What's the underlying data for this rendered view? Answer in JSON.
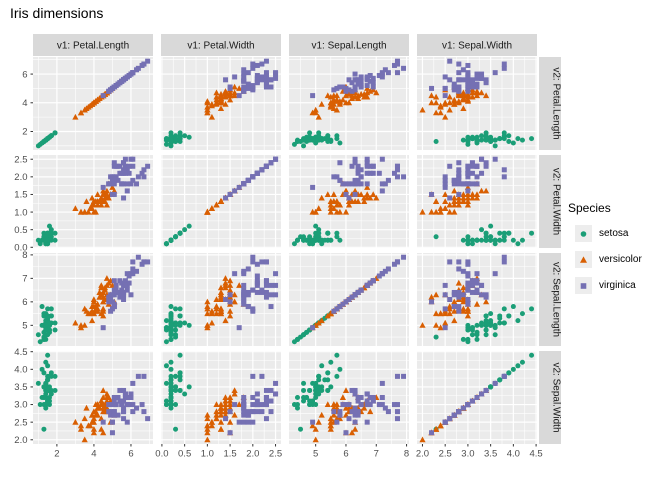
{
  "chart_data": {
    "type": "scatter",
    "title": "Iris dimensions",
    "facet_layout": "4x4 pairs matrix; column variable v1 on x-axis, row variable v2 on y-axis; strips on top and right; axis labels only on left and bottom",
    "facet_col_labels": [
      "v1: Petal.Length",
      "v1: Petal.Width",
      "v1: Sepal.Length",
      "v1: Sepal.Width"
    ],
    "facet_row_labels": [
      "v2: Petal.Length",
      "v2: Petal.Width",
      "v2: Sepal.Length",
      "v2: Sepal.Width"
    ],
    "variables": [
      "petal_length",
      "petal_width",
      "sepal_length",
      "sepal_width"
    ],
    "variable_display_names": [
      "Petal.Length",
      "Petal.Width",
      "Sepal.Length",
      "Sepal.Width"
    ],
    "axes": {
      "petal_length": {
        "domain": [
          0.71,
          7.19
        ],
        "ticks": [
          2,
          4,
          6
        ],
        "tick_labels": [
          "2",
          "4",
          "6"
        ]
      },
      "petal_width": {
        "domain": [
          -0.02,
          2.62
        ],
        "ticks": [
          0,
          0.5,
          1,
          1.5,
          2,
          2.5
        ],
        "tick_labels": [
          "0.0",
          "0.5",
          "1.0",
          "1.5",
          "2.0",
          "2.5"
        ]
      },
      "sepal_length": {
        "domain": [
          4.12,
          8.08
        ],
        "ticks": [
          5,
          6,
          7,
          8
        ],
        "tick_labels": [
          "5",
          "6",
          "7",
          "8"
        ]
      },
      "sepal_width": {
        "domain": [
          1.88,
          4.52
        ],
        "ticks": [
          2,
          2.5,
          3,
          3.5,
          4,
          4.5
        ],
        "tick_labels": [
          "2.0",
          "2.5",
          "3.0",
          "3.5",
          "4.0",
          "4.5"
        ]
      }
    },
    "legend": {
      "title": "Species",
      "position": "right",
      "entries": [
        {
          "label": "setosa",
          "shape": "circle",
          "color": "#1B9E77"
        },
        {
          "label": "versicolor",
          "shape": "triangle",
          "color": "#D95F02"
        },
        {
          "label": "virginica",
          "shape": "square",
          "color": "#7570B3"
        }
      ]
    },
    "series": [
      {
        "name": "setosa",
        "shape": "circle",
        "color": "#1B9E77",
        "sepal_length": [
          5.1,
          4.9,
          4.7,
          4.6,
          5.0,
          5.4,
          4.6,
          5.0,
          4.4,
          4.9,
          5.4,
          4.8,
          4.8,
          4.3,
          5.8,
          5.7,
          5.4,
          5.1,
          5.7,
          5.1,
          5.4,
          5.1,
          4.6,
          5.1,
          4.8,
          5.0,
          5.0,
          5.2,
          5.2,
          4.7,
          4.8,
          5.4,
          5.2,
          5.5,
          4.9,
          5.0,
          5.5,
          4.9,
          4.4,
          5.1,
          5.0,
          4.5,
          4.4,
          5.0,
          5.1,
          4.8,
          5.1,
          4.6,
          5.3,
          5.0
        ],
        "sepal_width": [
          3.5,
          3.0,
          3.2,
          3.1,
          3.6,
          3.9,
          3.4,
          3.4,
          2.9,
          3.1,
          3.7,
          3.4,
          3.0,
          3.0,
          4.0,
          4.4,
          3.9,
          3.5,
          3.8,
          3.8,
          3.4,
          3.7,
          3.6,
          3.3,
          3.4,
          3.0,
          3.4,
          3.5,
          3.4,
          3.2,
          3.1,
          3.4,
          4.1,
          4.2,
          3.1,
          3.2,
          3.5,
          3.6,
          3.0,
          3.4,
          3.5,
          2.3,
          3.2,
          3.5,
          3.8,
          3.0,
          3.8,
          3.2,
          3.7,
          3.3
        ],
        "petal_length": [
          1.4,
          1.4,
          1.3,
          1.5,
          1.4,
          1.7,
          1.4,
          1.5,
          1.4,
          1.5,
          1.5,
          1.6,
          1.4,
          1.1,
          1.2,
          1.5,
          1.3,
          1.4,
          1.7,
          1.5,
          1.7,
          1.5,
          1.0,
          1.7,
          1.9,
          1.6,
          1.6,
          1.5,
          1.4,
          1.6,
          1.6,
          1.5,
          1.5,
          1.4,
          1.5,
          1.2,
          1.3,
          1.4,
          1.3,
          1.5,
          1.3,
          1.3,
          1.3,
          1.6,
          1.9,
          1.4,
          1.6,
          1.4,
          1.5,
          1.4
        ],
        "petal_width": [
          0.2,
          0.2,
          0.2,
          0.2,
          0.2,
          0.4,
          0.3,
          0.2,
          0.2,
          0.1,
          0.2,
          0.2,
          0.1,
          0.1,
          0.2,
          0.4,
          0.4,
          0.3,
          0.3,
          0.3,
          0.2,
          0.4,
          0.2,
          0.5,
          0.2,
          0.2,
          0.4,
          0.2,
          0.2,
          0.2,
          0.2,
          0.4,
          0.1,
          0.2,
          0.2,
          0.2,
          0.2,
          0.1,
          0.2,
          0.2,
          0.3,
          0.3,
          0.2,
          0.6,
          0.4,
          0.3,
          0.2,
          0.2,
          0.2,
          0.2
        ]
      },
      {
        "name": "versicolor",
        "shape": "triangle",
        "color": "#D95F02",
        "sepal_length": [
          7.0,
          6.4,
          6.9,
          5.5,
          6.5,
          5.7,
          6.3,
          4.9,
          6.6,
          5.2,
          5.0,
          5.9,
          6.0,
          6.1,
          5.6,
          6.7,
          5.6,
          5.8,
          6.2,
          5.6,
          5.9,
          6.1,
          6.3,
          6.1,
          6.4,
          6.6,
          6.8,
          6.7,
          6.0,
          5.7,
          5.5,
          5.5,
          5.8,
          6.0,
          5.4,
          6.0,
          6.7,
          6.3,
          5.6,
          5.5,
          5.5,
          6.1,
          5.8,
          5.0,
          5.6,
          5.7,
          5.7,
          6.2,
          5.1,
          5.7
        ],
        "sepal_width": [
          3.2,
          3.2,
          3.1,
          2.3,
          2.8,
          2.8,
          3.3,
          2.4,
          2.9,
          2.7,
          2.0,
          3.0,
          2.2,
          2.9,
          2.9,
          3.1,
          3.0,
          2.7,
          2.2,
          2.5,
          3.2,
          2.8,
          2.5,
          2.8,
          2.9,
          3.0,
          2.8,
          3.0,
          2.9,
          2.6,
          2.4,
          2.4,
          2.7,
          2.7,
          3.0,
          3.4,
          3.1,
          2.3,
          3.0,
          2.5,
          2.6,
          3.0,
          2.6,
          2.3,
          2.7,
          3.0,
          2.9,
          2.9,
          2.5,
          2.8
        ],
        "petal_length": [
          4.7,
          4.5,
          4.9,
          4.0,
          4.6,
          4.5,
          4.7,
          3.3,
          4.6,
          3.9,
          3.5,
          4.2,
          4.0,
          4.7,
          3.6,
          4.4,
          4.5,
          4.1,
          4.5,
          3.9,
          4.8,
          4.0,
          4.9,
          4.7,
          4.3,
          4.4,
          4.8,
          5.0,
          4.5,
          3.5,
          3.8,
          3.7,
          3.9,
          5.1,
          4.5,
          4.5,
          4.7,
          4.4,
          4.1,
          4.0,
          4.4,
          4.6,
          4.0,
          3.3,
          4.2,
          4.2,
          4.2,
          4.3,
          3.0,
          4.1
        ],
        "petal_width": [
          1.4,
          1.5,
          1.5,
          1.3,
          1.5,
          1.3,
          1.6,
          1.0,
          1.3,
          1.4,
          1.0,
          1.5,
          1.0,
          1.4,
          1.3,
          1.4,
          1.5,
          1.0,
          1.5,
          1.1,
          1.8,
          1.3,
          1.5,
          1.2,
          1.3,
          1.4,
          1.4,
          1.7,
          1.5,
          1.0,
          1.1,
          1.0,
          1.2,
          1.6,
          1.5,
          1.6,
          1.5,
          1.3,
          1.3,
          1.3,
          1.2,
          1.4,
          1.2,
          1.0,
          1.3,
          1.2,
          1.3,
          1.3,
          1.1,
          1.3
        ]
      },
      {
        "name": "virginica",
        "shape": "square",
        "color": "#7570B3",
        "sepal_length": [
          6.3,
          5.8,
          7.1,
          6.3,
          6.5,
          7.6,
          4.9,
          7.3,
          6.7,
          7.2,
          6.5,
          6.4,
          6.8,
          5.7,
          5.8,
          6.4,
          6.5,
          7.7,
          7.7,
          6.0,
          6.9,
          5.6,
          7.7,
          6.3,
          6.7,
          7.2,
          6.2,
          6.1,
          6.4,
          7.2,
          7.4,
          7.9,
          6.4,
          6.3,
          6.1,
          7.7,
          6.3,
          6.4,
          6.0,
          6.9,
          6.7,
          6.9,
          5.8,
          6.8,
          6.7,
          6.7,
          6.3,
          6.5,
          6.2,
          5.9
        ],
        "sepal_width": [
          3.3,
          2.7,
          3.0,
          2.9,
          3.0,
          3.0,
          2.5,
          2.9,
          2.5,
          3.6,
          3.2,
          2.7,
          3.0,
          2.5,
          2.8,
          3.2,
          3.0,
          3.8,
          2.6,
          2.2,
          3.2,
          2.8,
          2.8,
          2.7,
          3.3,
          3.2,
          2.8,
          3.0,
          2.8,
          3.0,
          2.8,
          3.8,
          2.8,
          2.8,
          2.6,
          3.0,
          3.4,
          3.1,
          3.0,
          3.1,
          3.1,
          3.1,
          2.7,
          3.2,
          3.3,
          3.0,
          2.5,
          3.0,
          3.4,
          3.0
        ],
        "petal_length": [
          6.0,
          5.1,
          5.9,
          5.6,
          5.8,
          6.6,
          4.5,
          6.3,
          5.8,
          6.1,
          5.1,
          5.3,
          5.5,
          5.0,
          5.1,
          5.3,
          5.5,
          6.7,
          6.9,
          5.0,
          5.7,
          4.9,
          6.7,
          4.9,
          5.7,
          6.0,
          4.8,
          4.9,
          5.6,
          5.8,
          6.1,
          6.4,
          5.6,
          5.1,
          5.6,
          6.1,
          5.6,
          5.5,
          4.8,
          5.4,
          5.6,
          5.1,
          5.1,
          5.9,
          5.7,
          5.2,
          5.0,
          5.2,
          5.4,
          5.1
        ],
        "petal_width": [
          2.5,
          1.9,
          2.1,
          1.8,
          2.2,
          2.1,
          1.7,
          1.8,
          1.8,
          2.5,
          2.0,
          1.9,
          2.1,
          2.0,
          2.4,
          2.3,
          1.8,
          2.2,
          2.3,
          1.5,
          2.3,
          2.0,
          2.0,
          1.8,
          2.1,
          1.8,
          1.8,
          1.8,
          2.1,
          1.6,
          1.9,
          2.0,
          2.2,
          1.5,
          1.4,
          2.3,
          2.4,
          1.8,
          1.8,
          2.1,
          2.4,
          2.3,
          1.9,
          2.3,
          2.5,
          2.3,
          1.9,
          2.0,
          2.3,
          1.8
        ]
      }
    ]
  },
  "colors": {
    "page_bg": "#FFFFFF",
    "panel_bg": "#EBEBEB",
    "strip_bg": "#D9D9D9",
    "grid": "#FFFFFF",
    "tick_text": "#4D4D4D",
    "tick_mark": "#333333",
    "strip_text": "#1A1A1A",
    "title_text": "#000000",
    "legend_key_bg": "#EDEDED"
  }
}
